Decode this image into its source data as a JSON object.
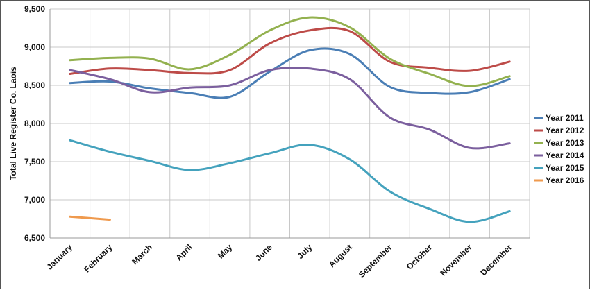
{
  "chart_data": {
    "type": "line",
    "title": "",
    "xlabel": "",
    "ylabel": "Total Live Register Co. Laois",
    "categories": [
      "January",
      "February",
      "March",
      "April",
      "May",
      "June",
      "July",
      "August",
      "September",
      "October",
      "November",
      "December"
    ],
    "y_ticks": [
      "6,500",
      "7,000",
      "7,500",
      "8,000",
      "8,500",
      "9,000",
      "9,500"
    ],
    "y_tick_values": [
      6500,
      7000,
      7500,
      8000,
      8500,
      9000,
      9500
    ],
    "ylim": [
      6500,
      9500
    ],
    "grid": true,
    "legend_position": "right",
    "series": [
      {
        "name": "Year 2011",
        "color": "#4a7eb5",
        "values": [
          8530,
          8550,
          8460,
          8400,
          8350,
          8680,
          8960,
          8910,
          8480,
          8400,
          8410,
          8580
        ]
      },
      {
        "name": "Year 2012",
        "color": "#bd4b48",
        "values": [
          8650,
          8720,
          8700,
          8660,
          8700,
          9050,
          9220,
          9210,
          8810,
          8730,
          8690,
          8810
        ]
      },
      {
        "name": "Year 2013",
        "color": "#93b14f",
        "values": [
          8830,
          8860,
          8850,
          8710,
          8900,
          9220,
          9390,
          9260,
          8850,
          8650,
          8490,
          8620
        ]
      },
      {
        "name": "Year 2014",
        "color": "#7b5f9e",
        "values": [
          8700,
          8580,
          8410,
          8470,
          8500,
          8700,
          8720,
          8580,
          8080,
          7920,
          7680,
          7740
        ]
      },
      {
        "name": "Year 2015",
        "color": "#44a2bd",
        "values": [
          7780,
          7630,
          7510,
          7390,
          7480,
          7610,
          7720,
          7530,
          7110,
          6880,
          6710,
          6850
        ]
      },
      {
        "name": "Year 2016",
        "color": "#ef9a4e",
        "values": [
          6780,
          6740,
          null,
          null,
          null,
          null,
          null,
          null,
          null,
          null,
          null,
          null
        ]
      }
    ]
  }
}
